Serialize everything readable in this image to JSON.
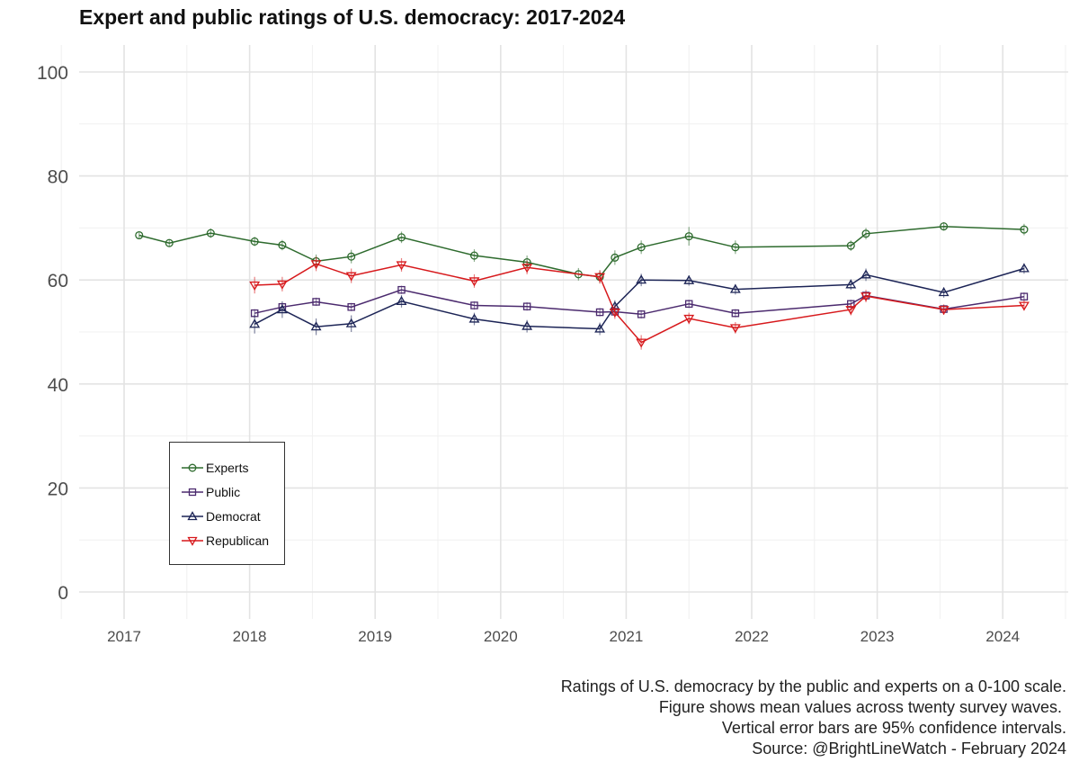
{
  "title": "Expert and public ratings of U.S. democracy: 2017-2024",
  "caption": [
    "Ratings of U.S. democracy by the public and experts on a 0-100 scale.",
    "Figure shows mean values across twenty survey waves. ",
    "Vertical error bars are 95% confidence intervals.",
    "Source: @BrightLineWatch - February 2024"
  ],
  "chart_data": {
    "type": "line",
    "title": "Expert and public ratings of U.S. democracy: 2017-2024",
    "xlabel": "",
    "ylabel": "",
    "xlim": [
      2016.7,
      2024.5
    ],
    "ylim": [
      -5,
      102
    ],
    "x_ticks": [
      2017,
      2018,
      2019,
      2020,
      2021,
      2022,
      2023,
      2024
    ],
    "y_ticks": [
      0,
      20,
      40,
      60,
      80,
      100
    ],
    "grid": true,
    "legend_position": "bottom-left",
    "series": [
      {
        "name": "Experts",
        "color": "#2e6b2e",
        "marker": "circle",
        "points": [
          {
            "x": 2017.12,
            "y": 68.6,
            "ci": 0.6
          },
          {
            "x": 2017.36,
            "y": 67.1,
            "ci": 0.7
          },
          {
            "x": 2017.69,
            "y": 69.0,
            "ci": 0.9
          },
          {
            "x": 2018.04,
            "y": 67.4,
            "ci": 0.9
          },
          {
            "x": 2018.26,
            "y": 66.7,
            "ci": 1.0
          },
          {
            "x": 2018.53,
            "y": 63.6,
            "ci": 1.3
          },
          {
            "x": 2018.81,
            "y": 64.5,
            "ci": 1.3
          },
          {
            "x": 2019.21,
            "y": 68.2,
            "ci": 1.1
          },
          {
            "x": 2019.79,
            "y": 64.7,
            "ci": 1.2
          },
          {
            "x": 2020.21,
            "y": 63.4,
            "ci": 1.3
          },
          {
            "x": 2020.62,
            "y": 61.1,
            "ci": 1.2
          },
          {
            "x": 2020.79,
            "y": 60.6,
            "ci": 1.2
          },
          {
            "x": 2020.91,
            "y": 64.3,
            "ci": 1.4
          },
          {
            "x": 2021.12,
            "y": 66.3,
            "ci": 1.3
          },
          {
            "x": 2021.5,
            "y": 68.4,
            "ci": 1.8
          },
          {
            "x": 2021.87,
            "y": 66.3,
            "ci": 1.3
          },
          {
            "x": 2022.79,
            "y": 66.6,
            "ci": 1.0
          },
          {
            "x": 2022.91,
            "y": 68.9,
            "ci": 1.1
          },
          {
            "x": 2023.53,
            "y": 70.3,
            "ci": 0.8
          },
          {
            "x": 2024.17,
            "y": 69.7,
            "ci": 1.1
          }
        ]
      },
      {
        "name": "Public",
        "color": "#4b2a6e",
        "marker": "square",
        "points": [
          {
            "x": 2018.04,
            "y": 53.6,
            "ci": 0.8
          },
          {
            "x": 2018.26,
            "y": 54.8,
            "ci": 0.8
          },
          {
            "x": 2018.53,
            "y": 55.8,
            "ci": 0.8
          },
          {
            "x": 2018.81,
            "y": 54.8,
            "ci": 0.8
          },
          {
            "x": 2019.21,
            "y": 58.1,
            "ci": 0.8
          },
          {
            "x": 2019.79,
            "y": 55.1,
            "ci": 0.8
          },
          {
            "x": 2020.21,
            "y": 54.9,
            "ci": 0.8
          },
          {
            "x": 2020.79,
            "y": 53.8,
            "ci": 0.8
          },
          {
            "x": 2020.91,
            "y": 53.9,
            "ci": 0.8
          },
          {
            "x": 2021.12,
            "y": 53.4,
            "ci": 0.8
          },
          {
            "x": 2021.5,
            "y": 55.4,
            "ci": 0.8
          },
          {
            "x": 2021.87,
            "y": 53.6,
            "ci": 0.8
          },
          {
            "x": 2022.79,
            "y": 55.4,
            "ci": 0.8
          },
          {
            "x": 2022.91,
            "y": 57.0,
            "ci": 0.8
          },
          {
            "x": 2023.53,
            "y": 54.4,
            "ci": 0.8
          },
          {
            "x": 2024.17,
            "y": 56.8,
            "ci": 0.8
          }
        ]
      },
      {
        "name": "Democrat",
        "color": "#1c2456",
        "marker": "triangle-up",
        "points": [
          {
            "x": 2018.04,
            "y": 51.5,
            "ci": 1.8
          },
          {
            "x": 2018.26,
            "y": 54.3,
            "ci": 1.6
          },
          {
            "x": 2018.53,
            "y": 51.0,
            "ci": 1.6
          },
          {
            "x": 2018.81,
            "y": 51.6,
            "ci": 1.6
          },
          {
            "x": 2019.21,
            "y": 55.9,
            "ci": 1.2
          },
          {
            "x": 2019.79,
            "y": 52.5,
            "ci": 1.2
          },
          {
            "x": 2020.21,
            "y": 51.1,
            "ci": 1.2
          },
          {
            "x": 2020.79,
            "y": 50.6,
            "ci": 1.2
          },
          {
            "x": 2020.91,
            "y": 54.9,
            "ci": 1.2
          },
          {
            "x": 2021.12,
            "y": 60.0,
            "ci": 1.2
          },
          {
            "x": 2021.5,
            "y": 59.9,
            "ci": 1.0
          },
          {
            "x": 2021.87,
            "y": 58.2,
            "ci": 1.0
          },
          {
            "x": 2022.79,
            "y": 59.1,
            "ci": 1.0
          },
          {
            "x": 2022.91,
            "y": 61.0,
            "ci": 1.2
          },
          {
            "x": 2023.53,
            "y": 57.6,
            "ci": 1.0
          },
          {
            "x": 2024.17,
            "y": 62.2,
            "ci": 1.0
          }
        ]
      },
      {
        "name": "Republican",
        "color": "#d7191c",
        "marker": "triangle-down",
        "points": [
          {
            "x": 2018.04,
            "y": 59.0,
            "ci": 1.6
          },
          {
            "x": 2018.26,
            "y": 59.2,
            "ci": 1.4
          },
          {
            "x": 2018.53,
            "y": 63.1,
            "ci": 1.4
          },
          {
            "x": 2018.81,
            "y": 60.8,
            "ci": 1.4
          },
          {
            "x": 2019.21,
            "y": 62.9,
            "ci": 1.3
          },
          {
            "x": 2019.79,
            "y": 59.8,
            "ci": 1.3
          },
          {
            "x": 2020.21,
            "y": 62.4,
            "ci": 1.3
          },
          {
            "x": 2020.79,
            "y": 60.6,
            "ci": 1.3
          },
          {
            "x": 2020.91,
            "y": 53.8,
            "ci": 1.3
          },
          {
            "x": 2021.12,
            "y": 48.0,
            "ci": 1.4
          },
          {
            "x": 2021.5,
            "y": 52.6,
            "ci": 1.1
          },
          {
            "x": 2021.87,
            "y": 50.8,
            "ci": 1.1
          },
          {
            "x": 2022.79,
            "y": 54.3,
            "ci": 1.1
          },
          {
            "x": 2022.91,
            "y": 56.9,
            "ci": 1.2
          },
          {
            "x": 2023.53,
            "y": 54.3,
            "ci": 1.0
          },
          {
            "x": 2024.17,
            "y": 55.1,
            "ci": 1.0
          }
        ]
      }
    ]
  }
}
